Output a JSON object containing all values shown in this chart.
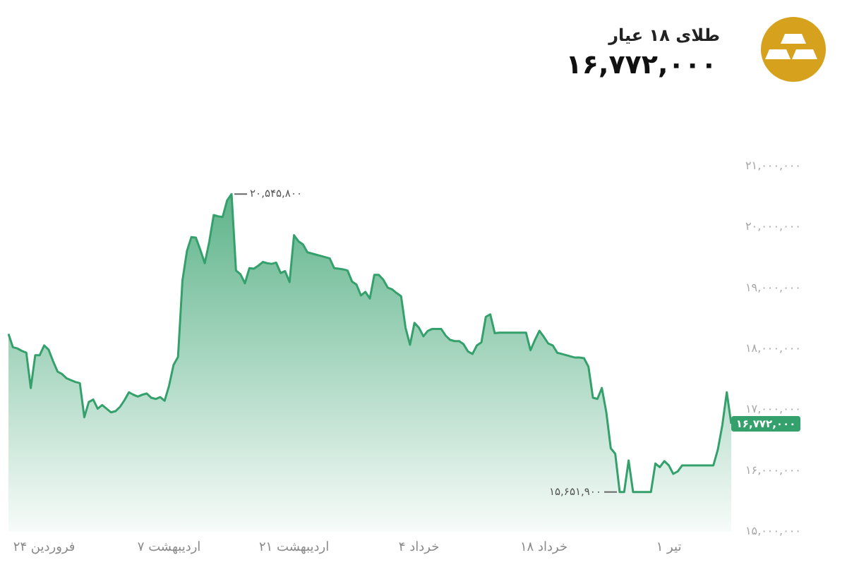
{
  "chart_data": {
    "type": "area",
    "title": "طلای ۱۸ عیار",
    "subtitle": "۱۶,۷۷۲,۰۰۰",
    "color": "#34a06c",
    "marker": "none",
    "line_style": "solid",
    "categories": [
      null,
      null,
      null,
      null,
      null,
      null,
      null,
      null,
      "۲۴ فروردین",
      null,
      null,
      null,
      null,
      null,
      null,
      null,
      null,
      null,
      null,
      null,
      null,
      null,
      null,
      null,
      null,
      null,
      null,
      null,
      null,
      null,
      null,
      null,
      null,
      null,
      null,
      null,
      "۷ اردیبهشت",
      null,
      null,
      null,
      null,
      null,
      null,
      null,
      null,
      null,
      null,
      null,
      null,
      null,
      null,
      null,
      null,
      null,
      null,
      null,
      null,
      null,
      null,
      null,
      null,
      null,
      null,
      null,
      "۲۱ اردیبهشت",
      null,
      null,
      null,
      null,
      null,
      null,
      null,
      null,
      null,
      null,
      null,
      null,
      null,
      null,
      null,
      null,
      null,
      null,
      null,
      null,
      null,
      null,
      null,
      null,
      null,
      null,
      null,
      "۴ خرداد",
      null,
      null,
      null,
      null,
      null,
      null,
      null,
      null,
      null,
      null,
      null,
      null,
      null,
      null,
      null,
      null,
      null,
      null,
      null,
      null,
      null,
      null,
      null,
      null,
      null,
      null,
      null,
      "۱۸ خرداد",
      null,
      null,
      null,
      null,
      null,
      null,
      null,
      null,
      null,
      null,
      null,
      null,
      null,
      null,
      null,
      null,
      null,
      null,
      null,
      null,
      null,
      null,
      null,
      null,
      null,
      null,
      null,
      "۱ تیر",
      null,
      null,
      null,
      null,
      null,
      null,
      null,
      null,
      null,
      null,
      null,
      null,
      null,
      null
    ],
    "values": [
      18250000,
      18030000,
      18010000,
      17970000,
      17940000,
      17360000,
      17900000,
      17900000,
      18060000,
      17990000,
      17800000,
      17630000,
      17590000,
      17520000,
      17490000,
      17460000,
      17440000,
      16880000,
      17130000,
      17170000,
      17020000,
      17080000,
      17020000,
      16960000,
      16980000,
      17050000,
      17160000,
      17290000,
      17250000,
      17220000,
      17250000,
      17270000,
      17200000,
      17180000,
      17210000,
      17150000,
      17400000,
      17740000,
      17870000,
      19130000,
      19610000,
      19840000,
      19830000,
      19630000,
      19410000,
      19760000,
      20200000,
      20180000,
      20170000,
      20440000,
      20545800,
      19290000,
      19230000,
      19080000,
      19330000,
      19320000,
      19370000,
      19430000,
      19410000,
      19400000,
      19420000,
      19250000,
      19280000,
      19100000,
      19870000,
      19770000,
      19720000,
      19590000,
      19570000,
      19550000,
      19530000,
      19510000,
      19490000,
      19330000,
      19320000,
      19310000,
      19290000,
      19110000,
      19060000,
      18880000,
      18940000,
      18830000,
      19220000,
      19220000,
      19140000,
      19010000,
      18980000,
      18920000,
      18870000,
      18350000,
      18070000,
      18430000,
      18350000,
      18210000,
      18300000,
      18330000,
      18330000,
      18330000,
      18220000,
      18150000,
      18130000,
      18130000,
      18080000,
      17960000,
      17920000,
      18060000,
      18110000,
      18530000,
      18570000,
      18260000,
      18270000,
      18270000,
      18270000,
      18270000,
      18270000,
      18270000,
      18270000,
      17980000,
      18150000,
      18300000,
      18200000,
      18090000,
      18060000,
      17940000,
      17920000,
      17900000,
      17880000,
      17860000,
      17860000,
      17850000,
      17710000,
      17200000,
      17180000,
      17360000,
      16960000,
      16370000,
      16280000,
      15651900,
      15651900,
      16170000,
      15651900,
      15651900,
      15651900,
      15651900,
      15651900,
      16120000,
      16060000,
      16160000,
      16090000,
      15950000,
      15990000,
      16090000,
      16090000,
      16090000,
      16090000,
      16090000,
      16090000,
      16090000,
      16090000,
      16350000,
      16750000,
      17290000,
      16772000
    ],
    "ylim": [
      15000000,
      21000000
    ],
    "yticks": [
      {
        "value": 15000000,
        "label": "۱۵,۰۰۰,۰۰۰"
      },
      {
        "value": 16000000,
        "label": "۱۶,۰۰۰,۰۰۰"
      },
      {
        "value": 17000000,
        "label": "۱۷,۰۰۰,۰۰۰"
      },
      {
        "value": 18000000,
        "label": "۱۸,۰۰۰,۰۰۰"
      },
      {
        "value": 19000000,
        "label": "۱۹,۰۰۰,۰۰۰"
      },
      {
        "value": 20000000,
        "label": "۲۰,۰۰۰,۰۰۰"
      },
      {
        "value": 21000000,
        "label": "۲۱,۰۰۰,۰۰۰"
      }
    ],
    "annotations": [
      "۲۰,۵۴۵,۸۰۰",
      "۱۵,۶۵۱,۹۰۰",
      "۱۶,۷۷۲,۰۰۰"
    ]
  }
}
